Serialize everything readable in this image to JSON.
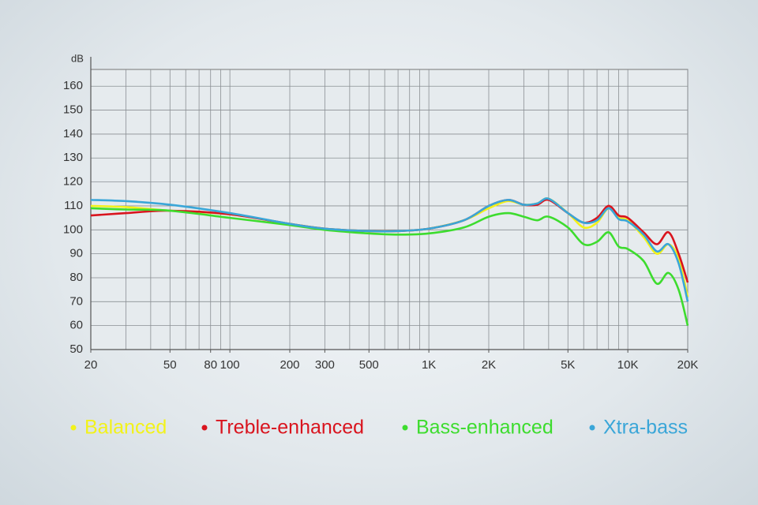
{
  "chart_data": {
    "type": "line",
    "y_label": "dB",
    "log_x": true,
    "grid": true,
    "x": [
      20,
      30,
      50,
      100,
      200,
      300,
      500,
      700,
      1000,
      1500,
      2000,
      2500,
      3000,
      3500,
      4000,
      5000,
      6000,
      7000,
      8000,
      9000,
      10000,
      12000,
      14000,
      16000,
      18000,
      20000
    ],
    "series": [
      {
        "name": "Balanced",
        "color": "#f2f21a",
        "values": [
          110,
          109.5,
          108,
          106.5,
          102.5,
          100.5,
          99.5,
          99.5,
          100.5,
          104,
          109,
          112,
          110.5,
          111,
          113,
          107,
          101,
          103,
          109,
          105,
          104,
          97,
          90,
          94,
          88,
          72
        ]
      },
      {
        "name": "Treble-enhanced",
        "color": "#d9141e",
        "values": [
          106,
          107,
          108,
          106.5,
          102.5,
          100.5,
          99.5,
          99.5,
          100.5,
          104,
          110,
          112.5,
          110.5,
          110.5,
          112.5,
          107,
          103,
          105,
          110,
          106,
          105,
          99,
          94,
          99,
          90,
          78
        ]
      },
      {
        "name": "Bass-enhanced",
        "color": "#3ddc2e",
        "values": [
          109,
          108.5,
          108,
          105,
          102,
          100,
          98.5,
          98,
          98.5,
          101,
          105.5,
          107,
          105.5,
          104,
          105.5,
          101,
          94,
          95,
          99,
          93,
          92,
          87,
          77.5,
          82,
          75,
          60
        ]
      },
      {
        "name": "Xtra-bass",
        "color": "#3aa6d8",
        "values": [
          112.5,
          112,
          110.5,
          107,
          102.5,
          100.5,
          99.5,
          99.5,
          100.5,
          104,
          110,
          112.5,
          110.5,
          111,
          113,
          107,
          103,
          104,
          109,
          104.5,
          103.5,
          98,
          91,
          94,
          86,
          70
        ]
      }
    ],
    "xlim": [
      20,
      20000
    ],
    "ylim": [
      50,
      167
    ],
    "xticks": [
      20,
      50,
      80,
      100,
      200,
      300,
      500,
      {
        "value": 1000,
        "label": "1K"
      },
      {
        "value": 2000,
        "label": "2K"
      },
      {
        "value": 5000,
        "label": "5K"
      },
      {
        "value": 10000,
        "label": "10K"
      },
      {
        "value": 20000,
        "label": "20K"
      }
    ],
    "xminor": [
      20,
      30,
      40,
      50,
      60,
      70,
      80,
      90,
      100,
      200,
      300,
      400,
      500,
      600,
      700,
      800,
      900,
      1000,
      2000,
      3000,
      4000,
      5000,
      6000,
      7000,
      8000,
      9000,
      10000,
      20000
    ],
    "yticks": [
      50,
      60,
      70,
      80,
      90,
      100,
      110,
      120,
      130,
      140,
      150,
      160
    ]
  }
}
